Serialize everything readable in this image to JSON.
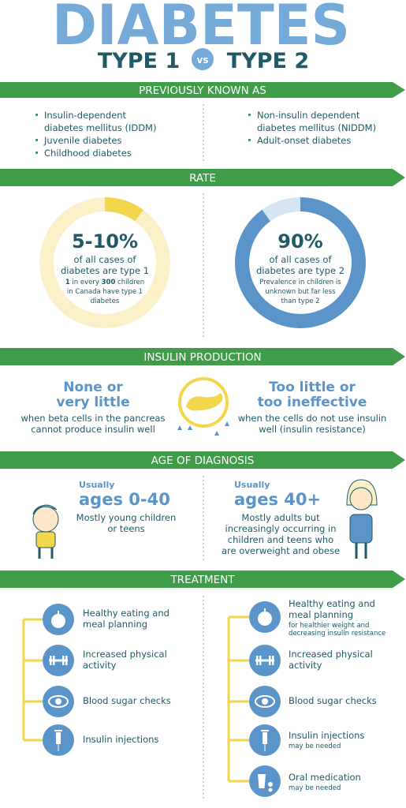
{
  "title": "DIABETES",
  "type1": "TYPE 1",
  "vs": "vs",
  "type2": "TYPE 2",
  "previously_known_as": {
    "heading": "PREVIOUSLY KNOWN AS",
    "type1": [
      [
        "Insulin-dependent",
        "diabetes mellitus (IDDM)"
      ],
      [
        "Juvenile diabetes"
      ],
      [
        "Childhood diabetes"
      ]
    ],
    "type2": [
      [
        "Non-insulin dependent",
        "diabetes mellitus (NIDDM)"
      ],
      [
        "Adult-onset diabetes"
      ]
    ]
  },
  "rate": {
    "heading": "RATE",
    "type1": {
      "share": {
        "value": 10,
        "label": "5-10%"
      },
      "text": [
        "of all cases of",
        "diabetes are type 1"
      ],
      "note": [
        [
          "1",
          " in every ",
          "300",
          " children"
        ],
        [
          "in Canada have type 1"
        ],
        [
          "diabetes"
        ]
      ]
    },
    "type2": {
      "share": {
        "value": 90,
        "label": "90%"
      },
      "text": [
        "of all cases of",
        "diabetes are type 2"
      ],
      "note": [
        [
          "Prevalence in children is"
        ],
        [
          "unknown but far less"
        ],
        [
          "than type 2"
        ]
      ]
    }
  },
  "insulin_production": {
    "heading": "INSULIN PRODUCTION",
    "type1": {
      "title": [
        "None or",
        "very little"
      ],
      "text": [
        "when beta cells in the pancreas",
        "cannot produce insulin well"
      ]
    },
    "type2": {
      "title": [
        "Too little or",
        "too ineffective"
      ],
      "text": [
        "when the cells do not use insulin",
        "well (insulin resistance)"
      ]
    }
  },
  "age_of_diagnosis": {
    "heading": "AGE OF DIAGNOSIS",
    "type1": {
      "usually": "Usually",
      "ages": "ages 0-40",
      "text": [
        "Mostly young children",
        "or teens"
      ]
    },
    "type2": {
      "usually": "Usually",
      "ages": "ages 40+",
      "text": [
        "Mostly adults but",
        "increasingly occurring in",
        "children and teens who",
        "are overweight and obese"
      ]
    }
  },
  "treatment": {
    "heading": "TREATMENT",
    "type1": [
      {
        "lines": [
          "Healthy eating and",
          "meal planning"
        ]
      },
      {
        "lines": [
          "Increased physical",
          "activity"
        ]
      },
      {
        "lines": [
          "Blood sugar checks"
        ]
      },
      {
        "lines": [
          "Insulin injections"
        ]
      }
    ],
    "type2": [
      {
        "lines": [
          "Healthy eating and",
          "meal planning"
        ],
        "note": [
          "for healthier weight and",
          "decreasing insulin resistance"
        ]
      },
      {
        "lines": [
          "Increased physical",
          "activity"
        ]
      },
      {
        "lines": [
          "Blood sugar checks"
        ]
      },
      {
        "lines": [
          "Insulin injections"
        ],
        "note": [
          "may be needed"
        ]
      },
      {
        "lines": [
          "Oral medication"
        ],
        "note": [
          "may be needed"
        ]
      }
    ]
  }
}
